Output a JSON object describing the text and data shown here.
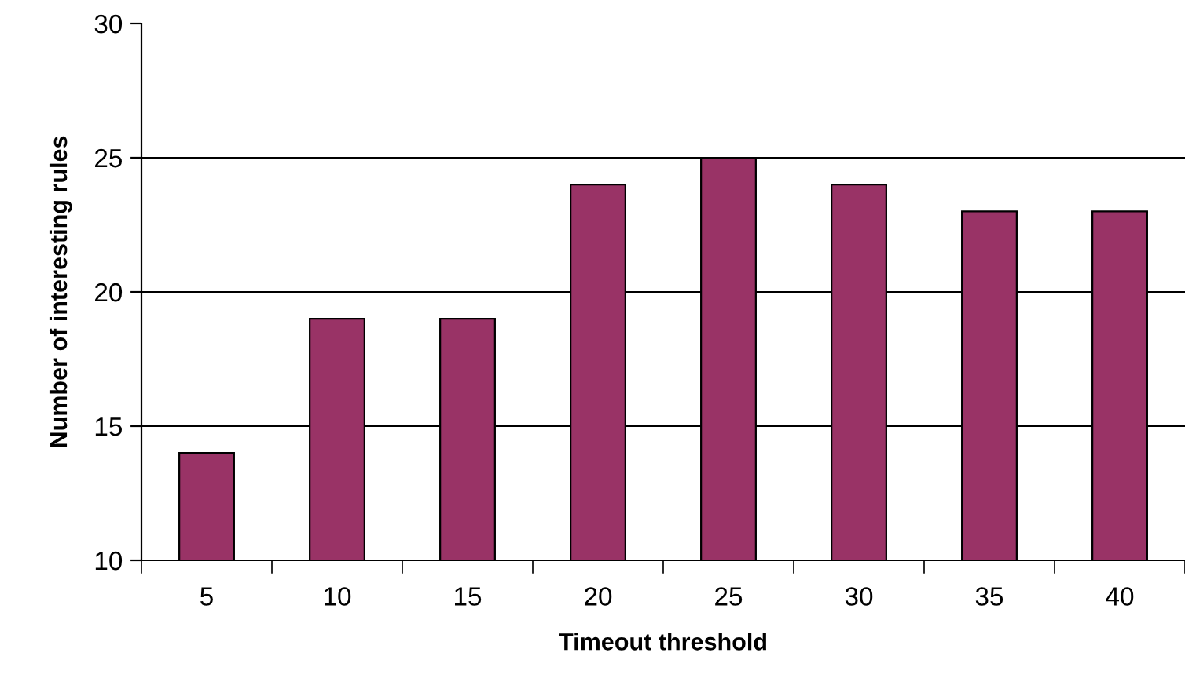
{
  "chart_data": {
    "type": "bar",
    "xlabel": "Timeout threshold",
    "ylabel": "Number of interesting rules",
    "categories": [
      "5",
      "10",
      "15",
      "20",
      "25",
      "30",
      "35",
      "40"
    ],
    "values": [
      14,
      19,
      19,
      24,
      25,
      24,
      23,
      23
    ],
    "color": "#993366",
    "ylim": [
      10,
      30
    ],
    "yticks": [
      10,
      15,
      20,
      25,
      30
    ],
    "grid": "y"
  }
}
